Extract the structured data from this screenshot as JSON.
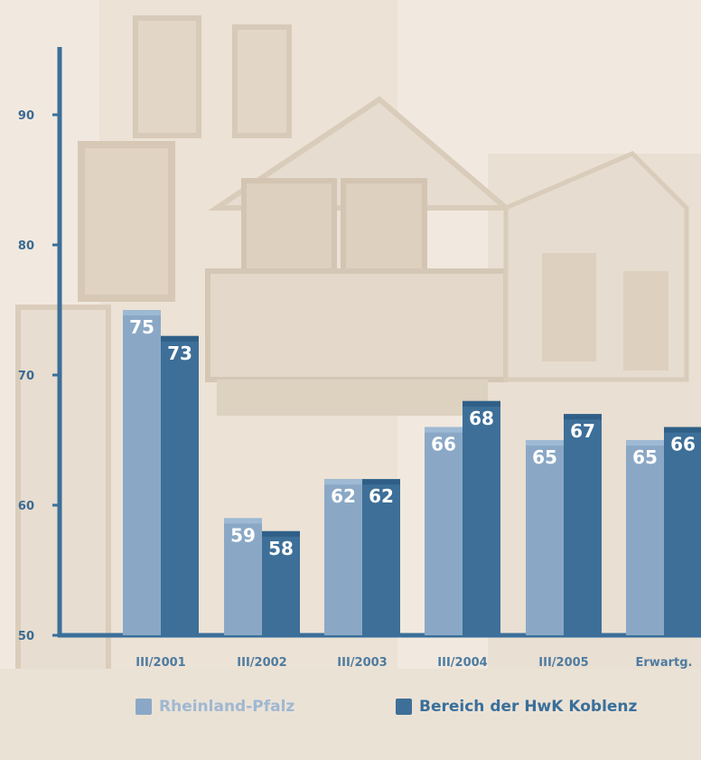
{
  "chart_data": {
    "type": "bar",
    "categories": [
      "III/2001",
      "III/2002",
      "III/2003",
      "III/2004",
      "III/2005",
      "Erwartg."
    ],
    "series": [
      {
        "name": "Rheinland-Pfalz",
        "values": [
          75,
          59,
          62,
          66,
          65,
          65
        ],
        "color": "#8aa8c6"
      },
      {
        "name": "Bereich der HwK Koblenz",
        "values": [
          73,
          58,
          62,
          68,
          67,
          66
        ],
        "color": "#3d6f98"
      }
    ],
    "yticks": [
      "50",
      "60",
      "70",
      "80",
      "90"
    ],
    "ylim": [
      50,
      95
    ],
    "axis_color": "#3a6f9a",
    "legend_position": "bottom",
    "grid": false
  }
}
